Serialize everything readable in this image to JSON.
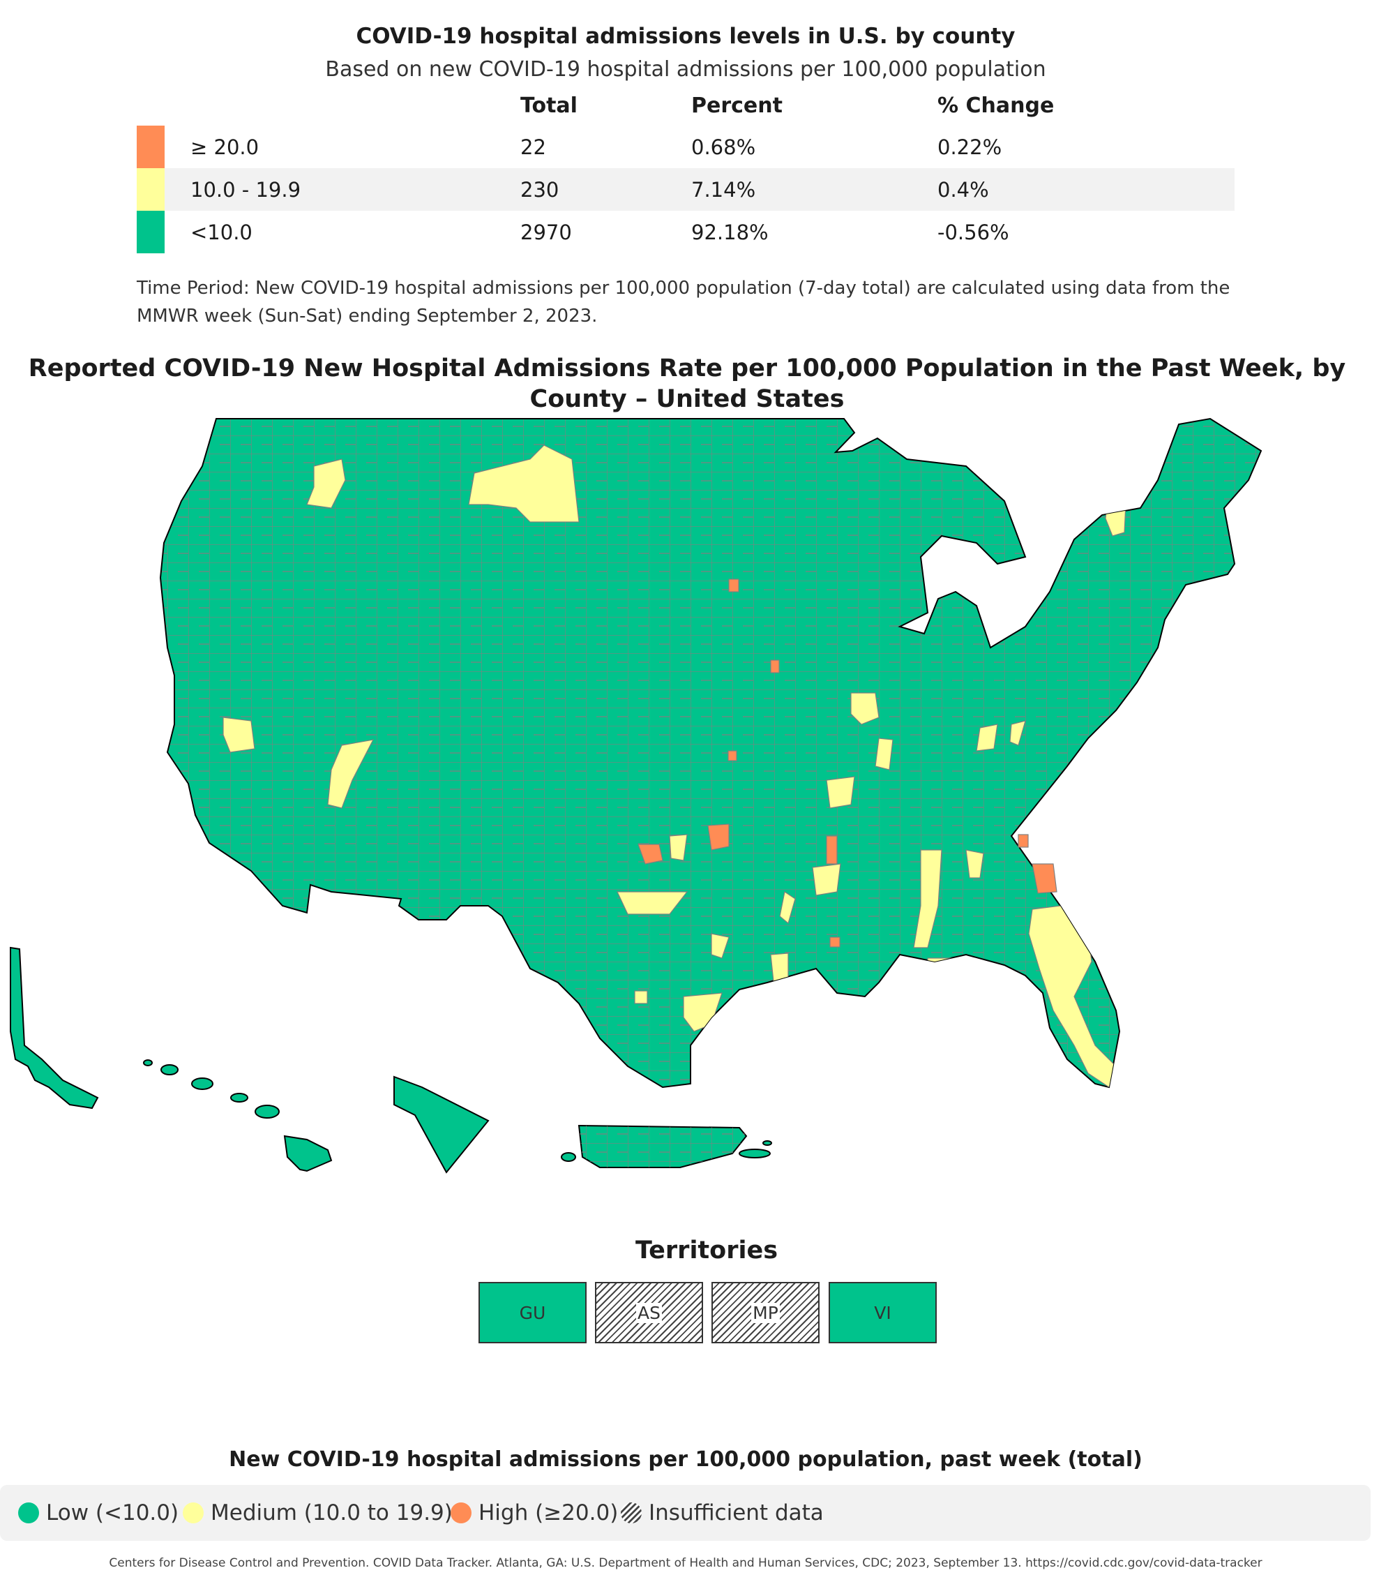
{
  "summary": {
    "title": "COVID-19 hospital admissions levels in U.S. by county",
    "subtitle": "Based on new COVID-19 hospital admissions per 100,000 population",
    "headers": {
      "total": "Total",
      "percent": "Percent",
      "change": "% Change"
    },
    "rows": [
      {
        "label": "≥ 20.0",
        "total": "22",
        "percent": "0.68%",
        "change": "0.22%",
        "color": "#ff8c55"
      },
      {
        "label": "10.0 - 19.9",
        "total": "230",
        "percent": "7.14%",
        "change": "0.4%",
        "color": "#ffff9b"
      },
      {
        "label": "<10.0",
        "total": "2970",
        "percent": "92.18%",
        "change": "-0.56%",
        "color": "#00c38c"
      }
    ],
    "time_period": "Time Period: New COVID-19 hospital admissions per 100,000 population (7-day total) are calculated using data from the MMWR week (Sun-Sat) ending September 2, 2023."
  },
  "map": {
    "title": "Reported COVID-19 New Hospital Admissions Rate per 100,000 Population in the Past Week, by County – United States",
    "colors": {
      "low": "#00c38c",
      "medium": "#ffff9b",
      "high": "#ff8c55",
      "county_border": "#808080",
      "state_border": "#000000"
    }
  },
  "territories": {
    "title": "Territories",
    "items": [
      {
        "code": "GU",
        "status": "low"
      },
      {
        "code": "AS",
        "status": "insufficient"
      },
      {
        "code": "MP",
        "status": "insufficient"
      },
      {
        "code": "VI",
        "status": "low"
      }
    ]
  },
  "legend": {
    "title": "New COVID-19 hospital admissions per 100,000 population, past week (total)",
    "items": [
      {
        "label": "Low (<10.0)",
        "color": "#00c38c"
      },
      {
        "label": "Medium (10.0 to 19.9)",
        "color": "#ffff9b"
      },
      {
        "label": "High (≥20.0)",
        "color": "#ff8c55"
      },
      {
        "label": "Insufficient data",
        "color": "hatch"
      }
    ]
  },
  "citation": "Centers for Disease Control and Prevention. COVID Data Tracker. Atlanta, GA: U.S. Department of Health and Human Services, CDC; 2023, September 13. https://covid.cdc.gov/covid-data-tracker"
}
